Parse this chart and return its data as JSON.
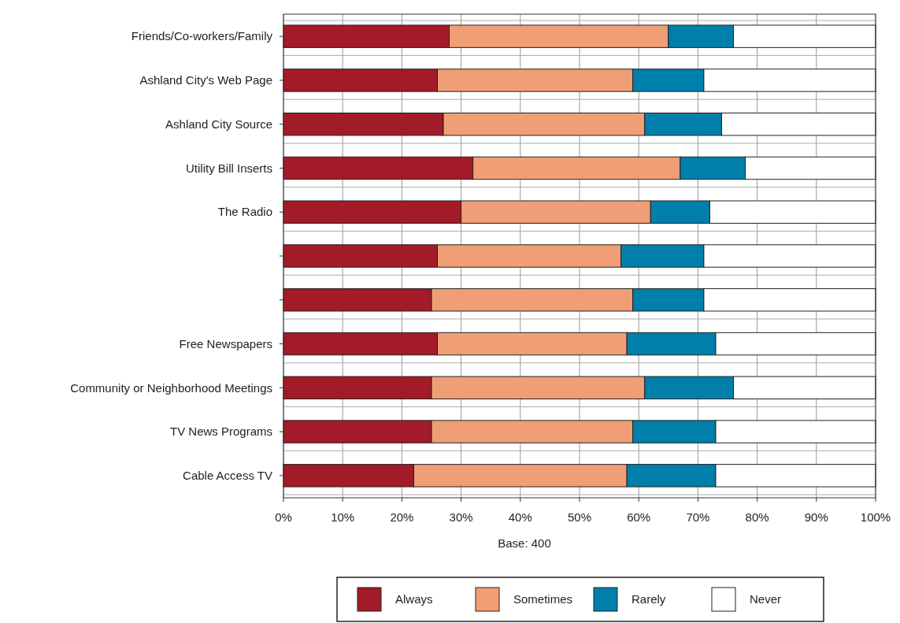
{
  "chart_data": {
    "type": "bar",
    "orientation": "horizontal",
    "stacked": true,
    "categories": [
      "Friends/Co-workers/Family",
      "Ashland City's Web Page",
      "Ashland City Source",
      "Utility Bill Inserts",
      "The Radio",
      null,
      null,
      "Free Newspapers",
      "Community or Neighborhood Meetings",
      "TV News Programs",
      "Cable Access TV"
    ],
    "series": [
      {
        "name": "Always",
        "color": "#a31a28",
        "values": [
          28,
          26,
          27,
          32,
          30,
          26,
          25,
          26,
          25,
          25,
          22
        ]
      },
      {
        "name": "Sometimes",
        "color": "#f09e76",
        "values": [
          37,
          33,
          34,
          35,
          32,
          31,
          34,
          32,
          36,
          34,
          36
        ]
      },
      {
        "name": "Rarely",
        "color": "#007faa",
        "values": [
          11,
          12,
          13,
          11,
          10,
          14,
          12,
          15,
          15,
          14,
          15
        ]
      },
      {
        "name": "Never",
        "color": "#ffffff",
        "values": [
          24,
          29,
          26,
          22,
          28,
          29,
          29,
          27,
          24,
          27,
          27
        ]
      }
    ],
    "xlim": [
      0,
      100
    ],
    "xticks": [
      {
        "value": 0,
        "label": "0%"
      },
      {
        "value": 10,
        "label": "10%"
      },
      {
        "value": 20,
        "label": "20%"
      },
      {
        "value": 30,
        "label": "30%"
      },
      {
        "value": 40,
        "label": "40%"
      },
      {
        "value": 50,
        "label": "50%"
      },
      {
        "value": 60,
        "label": "60%"
      },
      {
        "value": 70,
        "label": "70%"
      },
      {
        "value": 80,
        "label": "80%"
      },
      {
        "value": 90,
        "label": "90%"
      },
      {
        "value": 100,
        "label": "100%"
      }
    ],
    "xlabel": "Base:  400",
    "grid": "x",
    "legend": "bottom"
  }
}
